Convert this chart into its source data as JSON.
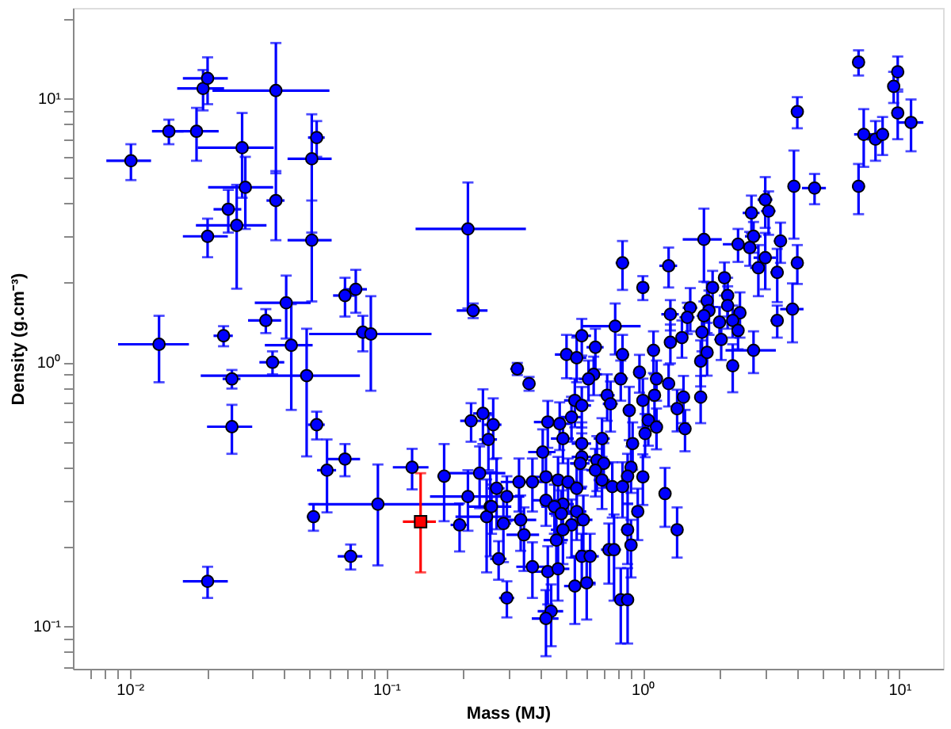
{
  "chart_data": {
    "type": "scatter",
    "xlabel": "Mass (MJ)",
    "ylabel": "Density (g.cm⁻³)",
    "log": "xy",
    "grid": false,
    "xlim": [
      0.006,
      14.8
    ],
    "ylim": [
      0.069,
      22
    ],
    "xticks": [
      {
        "value": 0.007,
        "label": null
      },
      {
        "value": 0.008,
        "label": null
      },
      {
        "value": 0.009,
        "label": null
      },
      {
        "value": 0.01,
        "label": "10⁻²"
      },
      {
        "value": 0.02,
        "label": null
      },
      {
        "value": 0.03,
        "label": null
      },
      {
        "value": 0.04,
        "label": null
      },
      {
        "value": 0.05,
        "label": null
      },
      {
        "value": 0.06,
        "label": null
      },
      {
        "value": 0.07,
        "label": null
      },
      {
        "value": 0.08,
        "label": null
      },
      {
        "value": 0.09,
        "label": null
      },
      {
        "value": 0.1,
        "label": "10⁻¹"
      },
      {
        "value": 0.2,
        "label": null
      },
      {
        "value": 0.3,
        "label": null
      },
      {
        "value": 0.4,
        "label": null
      },
      {
        "value": 0.5,
        "label": null
      },
      {
        "value": 0.6,
        "label": null
      },
      {
        "value": 0.7,
        "label": null
      },
      {
        "value": 0.8,
        "label": null
      },
      {
        "value": 0.9,
        "label": null
      },
      {
        "value": 1,
        "label": "10⁰"
      },
      {
        "value": 2,
        "label": null
      },
      {
        "value": 3,
        "label": null
      },
      {
        "value": 4,
        "label": null
      },
      {
        "value": 5,
        "label": null
      },
      {
        "value": 6,
        "label": null
      },
      {
        "value": 7,
        "label": null
      },
      {
        "value": 8,
        "label": null
      },
      {
        "value": 9,
        "label": null
      },
      {
        "value": 10,
        "label": "10¹"
      }
    ],
    "yticks": [
      {
        "value": 0.07,
        "label": null
      },
      {
        "value": 0.08,
        "label": null
      },
      {
        "value": 0.09,
        "label": null
      },
      {
        "value": 0.1,
        "label": "10⁻¹"
      },
      {
        "value": 0.2,
        "label": null
      },
      {
        "value": 0.3,
        "label": null
      },
      {
        "value": 0.4,
        "label": null
      },
      {
        "value": 0.5,
        "label": null
      },
      {
        "value": 0.6,
        "label": null
      },
      {
        "value": 0.7,
        "label": null
      },
      {
        "value": 0.8,
        "label": null
      },
      {
        "value": 0.9,
        "label": null
      },
      {
        "value": 1,
        "label": "10⁰"
      },
      {
        "value": 2,
        "label": null
      },
      {
        "value": 3,
        "label": null
      },
      {
        "value": 4,
        "label": null
      },
      {
        "value": 5,
        "label": null
      },
      {
        "value": 6,
        "label": null
      },
      {
        "value": 7,
        "label": null
      },
      {
        "value": 8,
        "label": null
      },
      {
        "value": 9,
        "label": null
      },
      {
        "value": 10,
        "label": "10¹"
      },
      {
        "value": 20,
        "label": null
      }
    ],
    "series": [
      {
        "color": "#0000ff",
        "marker": "circle",
        "x": [
          0.0101,
          0.0142,
          0.0182,
          0.0193,
          0.0201,
          0.0371,
          0.0274,
          0.0535,
          0.0512,
          0.0282,
          0.0371,
          0.0242,
          0.0261,
          0.0201,
          0.0512,
          0.208,
          0.218,
          0.076,
          0.069,
          0.0407,
          0.0339,
          0.013,
          0.0232,
          0.081,
          0.087,
          0.0426,
          0.036,
          0.025,
          0.0489,
          0.025,
          0.0535,
          0.0587,
          0.069,
          0.052,
          0.0927,
          0.0726,
          0.0201,
          0.126,
          0.168,
          0.193,
          0.214,
          0.238,
          0.261,
          0.25,
          0.231,
          0.269,
          0.208,
          0.254,
          0.246,
          0.286,
          0.274,
          0.295,
          6.93,
          9.85,
          9.5,
          9.85,
          11.1,
          7.26,
          8.07,
          8.6,
          4.0,
          6.93,
          3.88,
          4.67,
          3.0,
          3.09,
          2.65,
          1.73,
          2.35,
          2.7,
          3.44,
          2.61,
          3.0,
          2.82,
          3.34,
          4.0,
          3.83,
          3.34,
          1.26,
          2.08,
          1.87,
          2.14,
          1.78,
          1.53,
          1.81,
          2.14,
          2.39,
          1.28,
          1.49,
          1.73,
          1.99,
          2.24,
          0.833,
          1.0,
          0.78,
          0.578,
          0.504,
          0.552,
          0.653,
          0.833,
          1.1,
          1.28,
          1.42,
          1.7,
          2.02,
          2.35,
          2.7,
          1.68,
          2.24,
          1.78,
          0.324,
          0.36,
          0.643,
          0.614,
          0.82,
          0.97,
          1.13,
          1.26,
          1.11,
          0.726,
          0.543,
          0.748,
          1.0,
          1.44,
          1.68,
          0.885,
          1.36,
          0.578,
          0.527,
          0.426,
          0.474,
          1.05,
          1.13,
          1.02,
          0.912,
          0.693,
          0.488,
          0.578,
          1.46,
          0.407,
          0.578,
          0.662,
          0.704,
          0.57,
          0.653,
          0.899,
          0.872,
          1.0,
          0.419,
          0.467,
          0.371,
          0.329,
          0.511,
          0.76,
          0.833,
          0.552,
          0.693,
          1.22,
          0.295,
          0.419,
          0.488,
          0.452,
          0.552,
          0.481,
          0.955,
          0.257,
          0.334,
          0.586,
          0.527,
          0.488,
          0.344,
          0.872,
          1.36,
          0.46,
          0.737,
          0.772,
          0.899,
          0.578,
          0.623,
          0.371,
          0.426,
          0.467,
          0.543,
          0.604,
          0.82,
          0.872,
          0.439,
          0.419
        ],
        "values": [
          5.8,
          7.5,
          7.5,
          10.9,
          11.9,
          10.7,
          6.5,
          7.1,
          5.9,
          4.6,
          4.1,
          3.8,
          3.3,
          3.0,
          2.9,
          3.2,
          1.57,
          1.89,
          1.79,
          1.68,
          1.44,
          1.17,
          1.26,
          1.3,
          1.28,
          1.16,
          1.0,
          0.865,
          0.89,
          0.57,
          0.58,
          0.39,
          0.43,
          0.26,
          0.29,
          0.184,
          0.148,
          0.4,
          0.37,
          0.242,
          0.6,
          0.64,
          0.58,
          0.51,
          0.38,
          0.333,
          0.31,
          0.284,
          0.26,
          0.245,
          0.18,
          0.128,
          13.7,
          12.6,
          11.1,
          8.8,
          8.1,
          7.3,
          7.0,
          7.3,
          8.9,
          4.64,
          4.64,
          4.57,
          4.13,
          3.74,
          3.68,
          2.92,
          2.8,
          3.0,
          2.88,
          2.72,
          2.49,
          2.28,
          2.19,
          2.38,
          1.59,
          1.44,
          2.32,
          2.09,
          1.92,
          1.79,
          1.71,
          1.61,
          1.57,
          1.64,
          1.54,
          1.52,
          1.48,
          1.5,
          1.42,
          1.44,
          2.38,
          1.92,
          1.37,
          1.26,
          1.07,
          1.04,
          1.14,
          1.07,
          1.11,
          1.19,
          1.24,
          1.3,
          1.22,
          1.32,
          1.11,
          1.01,
          0.97,
          1.09,
          0.944,
          0.83,
          0.9,
          0.865,
          0.865,
          0.917,
          0.865,
          0.83,
          0.75,
          0.75,
          0.717,
          0.696,
          0.717,
          0.738,
          0.738,
          0.657,
          0.667,
          0.686,
          0.62,
          0.594,
          0.585,
          0.603,
          0.568,
          0.537,
          0.492,
          0.514,
          0.514,
          0.492,
          0.56,
          0.457,
          0.438,
          0.425,
          0.414,
          0.414,
          0.39,
          0.4,
          0.37,
          0.368,
          0.368,
          0.358,
          0.352,
          0.352,
          0.352,
          0.338,
          0.338,
          0.333,
          0.358,
          0.318,
          0.31,
          0.3,
          0.29,
          0.284,
          0.272,
          0.267,
          0.272,
          0.284,
          0.253,
          0.253,
          0.242,
          0.232,
          0.222,
          0.232,
          0.232,
          0.212,
          0.195,
          0.195,
          0.203,
          0.184,
          0.184,
          0.168,
          0.161,
          0.165,
          0.142,
          0.146,
          0.126,
          0.126,
          0.114,
          0.107
        ],
        "xerrors": [
          0.002,
          0.002,
          0.004,
          0.004,
          0.004,
          [
            0.021,
            0.06
          ],
          0.009,
          0.004,
          0.01,
          0.008,
          0.003,
          0.003,
          0.008,
          0.004,
          0.01,
          [
            0.13,
            0.35
          ],
          0.03,
          0.008,
          0.007,
          0.01,
          0.005,
          0.004,
          0.002,
          0.005,
          [
            0.05,
            0.15
          ],
          0.009,
          0.004,
          0.002,
          0.03,
          0.005,
          0.004,
          0.005,
          0.01,
          0.003,
          [
            0.05,
            0.2
          ],
          0.008,
          0.004,
          0.02,
          0.01,
          0.015,
          0.02,
          0.02,
          0.02,
          0.02,
          0.06,
          0.02,
          0.06,
          0.02,
          0.06,
          0.02,
          0.02,
          0.02,
          0.3,
          0.4,
          0.3,
          0.3,
          1.3,
          0.6,
          0.6,
          0.5,
          0.2,
          0.4,
          0.2,
          0.5,
          0.2,
          0.2,
          0.2,
          0.3,
          0.3,
          0.2,
          0.2,
          0.2,
          0.3,
          0.2,
          0.2,
          0.2,
          0.4,
          0.2,
          0.1,
          0.1,
          0.1,
          0.1,
          0.1,
          0.1,
          0.1,
          0.1,
          0.1,
          0.1,
          0.1,
          0.1,
          0.1,
          0.1,
          0.05,
          0.05,
          0.2,
          0.05,
          0.05,
          0.05,
          0.05,
          0.05,
          0.05,
          0.05,
          0.05,
          0.05,
          0.05,
          0.05,
          0.6,
          0.05,
          0.1,
          0.05,
          0.02,
          0.02,
          0.05,
          0.05,
          0.05,
          0.05,
          0.05,
          0.05,
          0.05,
          0.05,
          0.05,
          0.05,
          0.05,
          0.05,
          0.05,
          0.05,
          0.05,
          0.05,
          0.05,
          0.05,
          0.05,
          0.05,
          0.05,
          0.05,
          0.05,
          0.05,
          0.05,
          0.05,
          0.05,
          0.05,
          0.05,
          0.05,
          0.05,
          0.05,
          0.05,
          0.05,
          0.05,
          0.05,
          0.05,
          0.05,
          0.05,
          0.05,
          0.05,
          0.05,
          0.05,
          0.05,
          0.05,
          0.05,
          0.05,
          0.05,
          0.05,
          0.05,
          0.05,
          0.05,
          0.05,
          0.05,
          0.05,
          0.05,
          0.05,
          0.05,
          0.05,
          0.05,
          0.05,
          0.05,
          0.05,
          0.05,
          0.05,
          0.05,
          0.05,
          0.05,
          0.05,
          0.05,
          0.05,
          0.05,
          0.05,
          0.05,
          0.05,
          0.05
        ],
        "errors": [
          0.9,
          0.8,
          1.7,
          1.9,
          2.4,
          5.5,
          2.3,
          1.1,
          2.8,
          1.4,
          1.2,
          0.7,
          1.4,
          0.5,
          1.2,
          1.6,
          0.1,
          0.35,
          0.3,
          0.45,
          0.15,
          0.33,
          0.11,
          0.2,
          0.5,
          0.5,
          0.1,
          0.07,
          0.45,
          0.12,
          0.07,
          0.12,
          0.06,
          0.03,
          0.12,
          0.02,
          0.02,
          0.07,
          0.12,
          0.05,
          0.1,
          0.15,
          0.15,
          0.12,
          0.1,
          0.1,
          0.08,
          0.1,
          0.1,
          0.07,
          0.03,
          0.02,
          1.5,
          1.8,
          1.5,
          1.8,
          1.8,
          1.8,
          1.2,
          1.2,
          1.2,
          1.0,
          1.7,
          0.6,
          0.9,
          0.7,
          0.6,
          0.9,
          0.4,
          0.4,
          0.5,
          0.4,
          0.6,
          0.5,
          0.5,
          0.4,
          0.4,
          0.2,
          0.4,
          0.3,
          0.3,
          0.3,
          0.3,
          0.3,
          0.3,
          0.3,
          0.3,
          0.2,
          0.2,
          0.2,
          0.2,
          0.2,
          0.5,
          0.2,
          0.3,
          0.2,
          0.2,
          0.2,
          0.2,
          0.2,
          0.2,
          0.2,
          0.2,
          0.2,
          0.2,
          0.2,
          0.2,
          0.2,
          0.2,
          0.2,
          0.05,
          0.05,
          0.15,
          0.15,
          0.15,
          0.15,
          0.15,
          0.15,
          0.15,
          0.15,
          0.15,
          0.15,
          0.15,
          0.15,
          0.15,
          0.15,
          0.12,
          0.12,
          0.12,
          0.12,
          0.12,
          0.12,
          0.1,
          0.1,
          0.1,
          0.1,
          0.1,
          0.1,
          0.1,
          0.1,
          0.1,
          0.1,
          0.08,
          0.08,
          0.08,
          0.08,
          0.08,
          0.08,
          0.08,
          0.08,
          0.08,
          0.08,
          0.08,
          0.08,
          0.08,
          0.08,
          0.08,
          0.08,
          0.06,
          0.06,
          0.06,
          0.06,
          0.06,
          0.06,
          0.06,
          0.06,
          0.06,
          0.06,
          0.06,
          0.06,
          0.06,
          0.06,
          0.05,
          0.05,
          0.05,
          0.07,
          0.05,
          0.04,
          0.04,
          0.04,
          0.04,
          0.04,
          0.04,
          0.04,
          0.04,
          0.04,
          0.03,
          0.03
        ]
      },
      {
        "color": "#ff0000",
        "marker": "square",
        "x": [
          0.136
        ],
        "values": [
          0.249
        ],
        "xerrors": [
          0.02
        ],
        "errors": [
          [
            0.16,
            0.38
          ]
        ]
      }
    ]
  }
}
